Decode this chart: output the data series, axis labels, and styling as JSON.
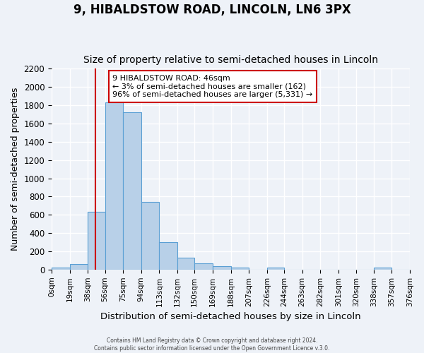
{
  "title": "9, HIBALDSTOW ROAD, LINCOLN, LN6 3PX",
  "subtitle": "Size of property relative to semi-detached houses in Lincoln",
  "bar_values": [
    20,
    60,
    630,
    1830,
    1720,
    740,
    300,
    130,
    70,
    40,
    20,
    0,
    20,
    0,
    0,
    0,
    0,
    0,
    20,
    0
  ],
  "bin_edges": [
    0,
    19,
    38,
    56,
    75,
    94,
    113,
    132,
    150,
    169,
    188,
    207,
    226,
    244,
    263,
    282,
    301,
    320,
    338,
    357,
    376
  ],
  "bin_labels": [
    "0sqm",
    "19sqm",
    "38sqm",
    "56sqm",
    "75sqm",
    "94sqm",
    "113sqm",
    "132sqm",
    "150sqm",
    "169sqm",
    "188sqm",
    "207sqm",
    "226sqm",
    "244sqm",
    "263sqm",
    "282sqm",
    "301sqm",
    "320sqm",
    "338sqm",
    "357sqm",
    "376sqm"
  ],
  "bar_color": "#b8d0e8",
  "bar_edge_color": "#5a9fd4",
  "vline_x": 46,
  "vline_color": "#cc0000",
  "ylim": [
    0,
    2200
  ],
  "yticks": [
    0,
    200,
    400,
    600,
    800,
    1000,
    1200,
    1400,
    1600,
    1800,
    2000,
    2200
  ],
  "ylabel": "Number of semi-detached properties",
  "xlabel": "Distribution of semi-detached houses by size in Lincoln",
  "annotation_title": "9 HIBALDSTOW ROAD: 46sqm",
  "annotation_line1": "← 3% of semi-detached houses are smaller (162)",
  "annotation_line2": "96% of semi-detached houses are larger (5,331) →",
  "annotation_box_color": "#ffffff",
  "annotation_box_edge": "#cc0000",
  "footer1": "Contains HM Land Registry data © Crown copyright and database right 2024.",
  "footer2": "Contains public sector information licensed under the Open Government Licence v.3.0.",
  "background_color": "#eef2f8",
  "grid_color": "#ffffff",
  "title_fontsize": 12,
  "subtitle_fontsize": 10,
  "axis_fontsize": 9
}
